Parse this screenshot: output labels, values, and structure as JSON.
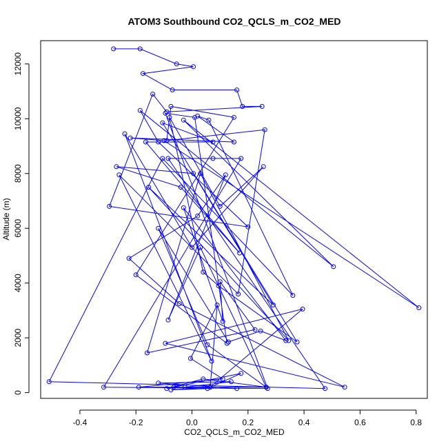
{
  "chart_data": {
    "type": "line",
    "title": "ATOM3 Southbound CO2_QCLS_m_CO2_MED",
    "xlabel": "CO2_QCLS_m_CO2_MED",
    "ylabel": "Altitude (m)",
    "xlim": [
      -0.54,
      0.84
    ],
    "ylim": [
      -210,
      12850
    ],
    "xticks": [
      -0.4,
      -0.2,
      0.0,
      0.2,
      0.4,
      0.6,
      0.8
    ],
    "xtick_labels": [
      "-0.4",
      "-0.2",
      "0.0",
      "0.2",
      "0.4",
      "0.6",
      "0.8"
    ],
    "yticks": [
      0,
      2000,
      4000,
      6000,
      8000,
      10000,
      12000
    ],
    "ytick_labels": [
      "0",
      "2000",
      "4000",
      "6000",
      "8000",
      "10000",
      "12000"
    ],
    "grid": false,
    "legend": "none",
    "marker": "open-circle",
    "colors": {
      "series": "#0000ff",
      "axis": "#000000",
      "background": "#ffffff"
    },
    "series": [
      {
        "x": [
          -0.28,
          -0.185,
          -0.055,
          0.005,
          -0.175,
          -0.07,
          0.16,
          0.18,
          0.25,
          -0.09,
          -0.14,
          -0.295,
          0.2,
          -0.12,
          -0.185,
          0.505,
          -0.03,
          0.81,
          -0.1,
          -0.22,
          0.15,
          0.02,
          0.06,
          0.36,
          -0.105,
          -0.51,
          0.475,
          -0.085,
          0.075,
          0.175,
          -0.315,
          0.27,
          -0.095,
          0.01,
          0.125,
          -0.2,
          0.15,
          -0.075,
          -0.09,
          0.26,
          0.165,
          -0.26,
          0.07,
          -0.24,
          0.0,
          0.255,
          0.1,
          -0.08,
          0.04,
          0.095,
          0.375,
          -0.105,
          0.075,
          -0.165,
          0.17,
          -0.04,
          -0.27,
          0.005,
          0.29,
          -0.155,
          0.345,
          0.03,
          -0.16,
          0.225,
          0.1,
          0.11,
          -0.03,
          0.335,
          0.245,
          0.13,
          -0.12,
          0.055,
          0.265,
          0.03,
          -0.085,
          0.12,
          0.02,
          -0.225,
          -0.045,
          0.545,
          -0.095,
          0.395,
          0.065,
          0.09,
          -0.005,
          0.11,
          -0.19,
          0.265,
          0.04,
          -0.09,
          -0.025,
          0.14,
          -0.12,
          0.16,
          -0.065,
          0.175,
          0.055,
          -0.075,
          0.065
        ],
        "y": [
          12550,
          12550,
          12000,
          11900,
          11650,
          11050,
          11050,
          10450,
          10450,
          10250,
          10900,
          6800,
          6050,
          9150,
          10300,
          4600,
          9950,
          3100,
          9200,
          9300,
          9150,
          10100,
          9950,
          3550,
          8550,
          400,
          150,
          8550,
          8550,
          8550,
          200,
          150,
          10200,
          10050,
          1800,
          4300,
          10050,
          10450,
          9200,
          9600,
          3600,
          7950,
          1150,
          9450,
          5300,
          8250,
          6800,
          10050,
          4400,
          3900,
          1850,
          9850,
          9150,
          9150,
          5100,
          7500,
          8250,
          8000,
          3200,
          7500,
          1900,
          8000,
          1450,
          2300,
          4050,
          2600,
          6750,
          1900,
          2250,
          1850,
          6000,
          1750,
          200,
          5300,
          2650,
          7950,
          6450,
          4900,
          3250,
          200,
          1800,
          3050,
          200,
          3200,
          1250,
          500,
          200,
          200,
          500,
          150,
          200,
          400,
          350,
          150,
          200,
          700,
          150,
          100,
          200
        ]
      }
    ]
  }
}
